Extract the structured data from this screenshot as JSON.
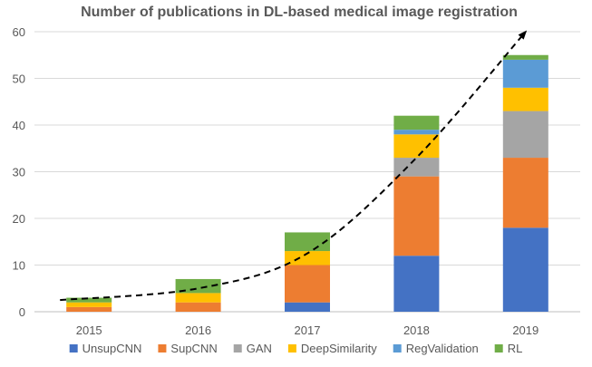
{
  "chart_data": {
    "type": "bar",
    "stacked": true,
    "title": "Number of publications in DL-based medical image registration",
    "xlabel": "",
    "ylabel": "",
    "ylim": [
      0,
      60
    ],
    "yticks": [
      0,
      10,
      20,
      30,
      40,
      50,
      60
    ],
    "grid": true,
    "legend_position": "bottom",
    "categories": [
      "2015",
      "2016",
      "2017",
      "2018",
      "2019"
    ],
    "series": [
      {
        "name": "UnsupCNN",
        "color": "#4472c4",
        "values": [
          0,
          0,
          2,
          12,
          18
        ]
      },
      {
        "name": "SupCNN",
        "color": "#ed7d31",
        "values": [
          1,
          2,
          8,
          17,
          15
        ]
      },
      {
        "name": "GAN",
        "color": "#a5a5a5",
        "values": [
          0,
          0,
          0,
          4,
          10
        ]
      },
      {
        "name": "DeepSimilarity",
        "color": "#ffc000",
        "values": [
          1,
          2,
          3,
          5,
          5
        ]
      },
      {
        "name": "RegValidation",
        "color": "#5b9bd5",
        "values": [
          0,
          0,
          0,
          1,
          6
        ]
      },
      {
        "name": "RL",
        "color": "#70ad47",
        "values": [
          1,
          3,
          4,
          3,
          1
        ]
      }
    ],
    "trend_line": {
      "style": "dashed",
      "color": "#000000",
      "arrow": true,
      "points": [
        [
          2015,
          2.5
        ],
        [
          2016,
          5
        ],
        [
          2017,
          12.5
        ],
        [
          2018,
          33
        ],
        [
          2019,
          60
        ]
      ]
    }
  }
}
